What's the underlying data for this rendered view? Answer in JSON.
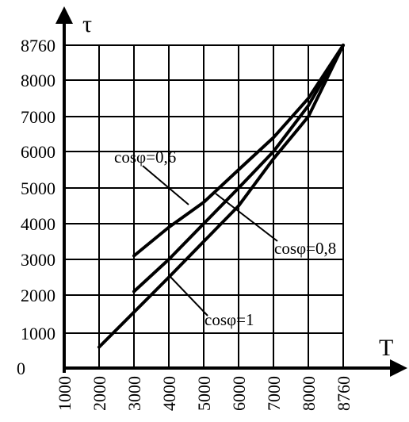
{
  "chart_data": {
    "type": "line",
    "x_axis_label": "T",
    "y_axis_label": "τ",
    "x_ticks": [
      "1000",
      "2000",
      "3000",
      "4000",
      "5000",
      "6000",
      "7000",
      "8000",
      "8760"
    ],
    "y_ticks": [
      "0",
      "1000",
      "2000",
      "3000",
      "4000",
      "5000",
      "6000",
      "7000",
      "8000",
      "8760"
    ],
    "grid": true,
    "series": [
      {
        "name": "cosφ=1",
        "x": [
          2000,
          4000,
          6000,
          7000,
          8000,
          8760
        ],
        "y": [
          600,
          2500,
          4500,
          5800,
          7000,
          8760
        ]
      },
      {
        "name": "cosφ=0,8",
        "x": [
          3000,
          4000,
          5000,
          6000,
          7000,
          8000,
          8760
        ],
        "y": [
          2100,
          3000,
          4000,
          5000,
          6000,
          7300,
          8760
        ]
      },
      {
        "name": "cosφ=0,6",
        "x": [
          3000,
          4000,
          5000,
          6000,
          7000,
          8000,
          8760
        ],
        "y": [
          3100,
          3900,
          4600,
          5500,
          6400,
          7500,
          8760
        ]
      }
    ],
    "annotations": [
      "cosφ=0,6",
      "cosφ=0,8",
      "cosφ=1"
    ]
  }
}
